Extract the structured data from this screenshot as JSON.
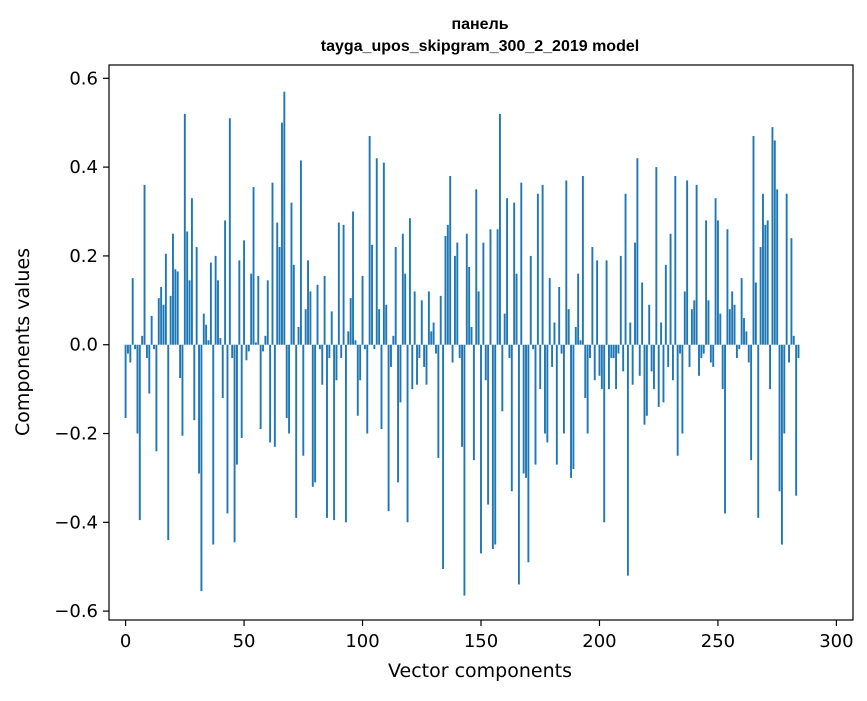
{
  "chart_data": {
    "type": "bar",
    "title_line1": "панель",
    "title_line2": "tayga_upos_skipgram_300_2_2019 model",
    "xlabel": "Vector components",
    "ylabel": "Components values",
    "xlim": [
      -7,
      307
    ],
    "ylim": [
      -0.62,
      0.63
    ],
    "xticks": [
      0,
      50,
      100,
      150,
      200,
      250,
      300
    ],
    "xtick_labels": [
      "0",
      "50",
      "100",
      "150",
      "200",
      "250",
      "300"
    ],
    "yticks": [
      -0.6,
      -0.4,
      -0.2,
      0.0,
      0.2,
      0.4,
      0.6
    ],
    "ytick_labels": [
      "−0.6",
      "−0.4",
      "−0.2",
      "0.0",
      "0.2",
      "0.4",
      "0.6"
    ],
    "grid": false,
    "bar_color": "#1f77b4",
    "values": [
      -0.165,
      -0.02,
      -0.04,
      0.15,
      -0.01,
      -0.2,
      -0.395,
      0.02,
      0.36,
      -0.03,
      -0.11,
      0.065,
      -0.01,
      -0.24,
      0.105,
      0.13,
      0.09,
      0.205,
      -0.44,
      0.11,
      0.25,
      0.17,
      0.165,
      -0.075,
      -0.205,
      0.52,
      0.255,
      0.145,
      0.33,
      -0.17,
      0.22,
      -0.29,
      -0.555,
      0.07,
      0.045,
      0.01,
      0.185,
      -0.45,
      0.2,
      0.145,
      0.015,
      -0.12,
      0.28,
      -0.38,
      0.51,
      -0.03,
      -0.445,
      -0.27,
      0.19,
      -0.21,
      0.235,
      -0.035,
      -0.015,
      0.16,
      0.355,
      0.005,
      0.155,
      -0.19,
      -0.015,
      0.02,
      0.145,
      -0.22,
      0.365,
      -0.23,
      0.275,
      0.22,
      0.5,
      0.57,
      -0.165,
      -0.2,
      0.32,
      0.18,
      -0.39,
      0.04,
      0.415,
      -0.25,
      0.08,
      0.19,
      0.12,
      -0.32,
      -0.31,
      0.135,
      -0.01,
      -0.09,
      0.155,
      -0.39,
      -0.03,
      0.075,
      -0.395,
      -0.08,
      0.275,
      -0.03,
      0.27,
      -0.4,
      0.03,
      0.105,
      0.3,
      0.01,
      -0.16,
      -0.08,
      0.155,
      -0.01,
      -0.2,
      0.47,
      0.225,
      -0.01,
      0.42,
      0.08,
      -0.19,
      0.41,
      0.09,
      -0.375,
      -0.05,
      0.02,
      0.22,
      -0.31,
      -0.13,
      0.25,
      0.16,
      -0.4,
      0.285,
      -0.1,
      0.12,
      -0.09,
      -0.03,
      0.1,
      -0.05,
      -0.09,
      0.12,
      0.03,
      0.05,
      -0.02,
      -0.255,
      0.11,
      -0.505,
      0.245,
      0.27,
      0.38,
      -0.04,
      0.2,
      0.23,
      -0.03,
      -0.23,
      -0.565,
      0.25,
      0.175,
      0.04,
      -0.26,
      0.35,
      0.12,
      -0.47,
      0.23,
      -0.08,
      -0.36,
      0.26,
      -0.46,
      -0.45,
      0.26,
      0.52,
      -0.15,
      0.07,
      0.33,
      -0.03,
      -0.33,
      0.32,
      0.16,
      -0.54,
      0.365,
      -0.29,
      -0.3,
      -0.49,
      0.2,
      -0.01,
      -0.27,
      0.34,
      -0.1,
      0.36,
      -0.2,
      -0.22,
      0.15,
      -0.05,
      0.05,
      -0.27,
      0.13,
      -0.02,
      -0.2,
      0.37,
      0.08,
      -0.3,
      -0.28,
      0.04,
      0.16,
      0.01,
      0.38,
      -0.12,
      -0.2,
      -0.03,
      0.22,
      -0.08,
      0.19,
      -0.07,
      -0.1,
      -0.4,
      0.19,
      -0.1,
      -0.03,
      -0.03,
      -0.1,
      -0.02,
      0.2,
      -0.06,
      0.34,
      -0.52,
      0.05,
      -0.09,
      0.23,
      0.42,
      -0.07,
      0.14,
      -0.18,
      -0.16,
      0.09,
      -0.06,
      -0.1,
      0.4,
      -0.14,
      0.05,
      -0.13,
      0.18,
      -0.05,
      0.25,
      -0.08,
      0.38,
      -0.25,
      -0.02,
      -0.2,
      0.12,
      0.37,
      -0.05,
      0.08,
      0.1,
      0.36,
      -0.07,
      -0.03,
      -0.02,
      0.28,
      0.1,
      -0.04,
      -0.05,
      0.33,
      0.28,
      0.07,
      -0.1,
      -0.38,
      0.26,
      0.08,
      0.12,
      0.09,
      -0.03,
      -0.01,
      0.15,
      0.06,
      0.03,
      -0.04,
      -0.26,
      0.47,
      0.14,
      -0.39,
      0.22,
      0.34,
      0.27,
      0.28,
      -0.1,
      0.49,
      0.46,
      0.35,
      -0.33,
      -0.45,
      -0.2,
      0.34,
      -0.04,
      0.24,
      0.02,
      -0.34,
      -0.03
    ]
  }
}
